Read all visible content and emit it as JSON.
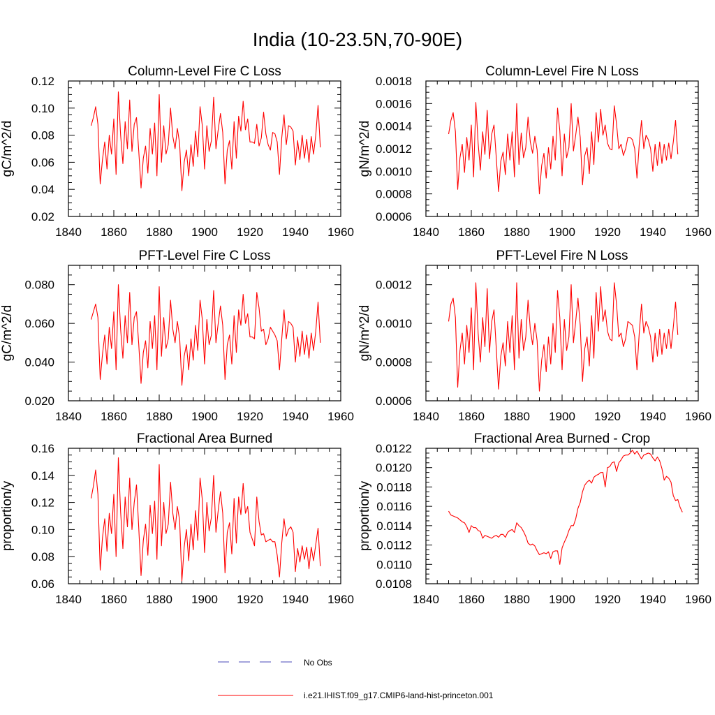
{
  "title": "India (10-23.5N,70-90E)",
  "colors": {
    "model": "#ff0000",
    "obs": "#4a4ab8"
  },
  "legend": [
    {
      "label": "No Obs",
      "color": "#4a4ab8",
      "dash": true
    },
    {
      "label": "i.e21.IHIST.f09_g17.CMIP6-land-hist-princeton.001",
      "color": "#ff0000",
      "dash": false
    }
  ],
  "chart_data": [
    {
      "type": "line",
      "title": "Column-Level Fire C Loss",
      "ylabel": "gC/m^2/d",
      "xlim": [
        1840,
        1960
      ],
      "xticks": [
        "1840",
        "1860",
        "1880",
        "1900",
        "1920",
        "1940",
        "1960"
      ],
      "ylim": [
        0.02,
        0.12
      ],
      "yticks": [
        "0.02",
        "0.04",
        "0.06",
        "0.08",
        "0.10",
        "0.12"
      ],
      "x_start": 1850,
      "series": [
        {
          "values": [
            0.087,
            0.093,
            0.101,
            0.088,
            0.044,
            0.062,
            0.075,
            0.055,
            0.08,
            0.066,
            0.092,
            0.051,
            0.112,
            0.08,
            0.059,
            0.09,
            0.07,
            0.106,
            0.068,
            0.088,
            0.093,
            0.068,
            0.041,
            0.063,
            0.072,
            0.052,
            0.085,
            0.066,
            0.089,
            0.05,
            0.11,
            0.06,
            0.087,
            0.066,
            0.073,
            0.1,
            0.079,
            0.07,
            0.085,
            0.074,
            0.039,
            0.06,
            0.069,
            0.05,
            0.073,
            0.057,
            0.083,
            0.064,
            0.101,
            0.087,
            0.055,
            0.087,
            0.068,
            0.076,
            0.108,
            0.07,
            0.084,
            0.096,
            0.082,
            0.044,
            0.069,
            0.076,
            0.055,
            0.09,
            0.063,
            0.094,
            0.083,
            0.105,
            0.084,
            0.092,
            0.075,
            0.075,
            0.074,
            0.088,
            0.072,
            0.078,
            0.097,
            0.081,
            0.073,
            0.069,
            0.082,
            0.081,
            0.075,
            0.051,
            0.078,
            0.095,
            0.073,
            0.087,
            0.086,
            0.083,
            0.058,
            0.076,
            0.062,
            0.08,
            0.063,
            0.077,
            0.06,
            0.079,
            0.066,
            0.08,
            0.102,
            0.071
          ]
        }
      ]
    },
    {
      "type": "line",
      "title": "Column-Level Fire N Loss",
      "ylabel": "gN/m^2/d",
      "xlim": [
        1840,
        1960
      ],
      "xticks": [
        "1840",
        "1860",
        "1880",
        "1900",
        "1920",
        "1940",
        "1960"
      ],
      "ylim": [
        0.0006,
        0.0018
      ],
      "yticks": [
        "0.0006",
        "0.0008",
        "0.0010",
        "0.0012",
        "0.0014",
        "0.0016",
        "0.0018"
      ],
      "x_start": 1850,
      "series": [
        {
          "values": [
            0.00133,
            0.00145,
            0.00152,
            0.00135,
            0.00084,
            0.00112,
            0.00124,
            0.00099,
            0.0013,
            0.0011,
            0.00141,
            0.00095,
            0.00161,
            0.00125,
            0.00101,
            0.00135,
            0.00115,
            0.00154,
            0.00111,
            0.00133,
            0.00141,
            0.00112,
            0.00082,
            0.00109,
            0.00117,
            0.00097,
            0.00133,
            0.0011,
            0.00135,
            0.00095,
            0.0016,
            0.00106,
            0.00134,
            0.00112,
            0.00121,
            0.00148,
            0.00126,
            0.00116,
            0.00131,
            0.00119,
            0.0008,
            0.00105,
            0.00116,
            0.00094,
            0.00121,
            0.00102,
            0.00131,
            0.0011,
            0.00156,
            0.00136,
            0.00096,
            0.00133,
            0.00112,
            0.00121,
            0.0016,
            0.00118,
            0.00132,
            0.00148,
            0.0013,
            0.00088,
            0.00114,
            0.00121,
            0.00098,
            0.00135,
            0.00106,
            0.00152,
            0.00126,
            0.00155,
            0.00132,
            0.00141,
            0.00125,
            0.0012,
            0.00119,
            0.00158,
            0.00142,
            0.0012,
            0.00124,
            0.00114,
            0.0012,
            0.0013,
            0.0013,
            0.00128,
            0.0012,
            0.00094,
            0.00124,
            0.00145,
            0.0012,
            0.00132,
            0.00128,
            0.0012,
            0.001,
            0.00124,
            0.00105,
            0.00126,
            0.00107,
            0.00124,
            0.0011,
            0.00125,
            0.00111,
            0.00126,
            0.00145,
            0.00115
          ]
        }
      ]
    },
    {
      "type": "line",
      "title": "PFT-Level Fire C Loss",
      "ylabel": "gC/m^2/d",
      "xlim": [
        1840,
        1960
      ],
      "xticks": [
        "1840",
        "1860",
        "1880",
        "1900",
        "1920",
        "1940",
        "1960"
      ],
      "ylim": [
        0.02,
        0.09
      ],
      "yticks": [
        "0.020",
        "0.040",
        "0.060",
        "0.080"
      ],
      "x_start": 1850,
      "series": [
        {
          "values": [
            0.062,
            0.066,
            0.07,
            0.063,
            0.031,
            0.044,
            0.054,
            0.039,
            0.058,
            0.047,
            0.066,
            0.036,
            0.08,
            0.057,
            0.042,
            0.064,
            0.05,
            0.076,
            0.049,
            0.063,
            0.066,
            0.049,
            0.029,
            0.045,
            0.051,
            0.037,
            0.061,
            0.047,
            0.064,
            0.036,
            0.079,
            0.043,
            0.063,
            0.047,
            0.052,
            0.072,
            0.057,
            0.05,
            0.061,
            0.053,
            0.028,
            0.043,
            0.049,
            0.036,
            0.052,
            0.041,
            0.059,
            0.046,
            0.072,
            0.062,
            0.039,
            0.062,
            0.049,
            0.054,
            0.077,
            0.05,
            0.06,
            0.069,
            0.059,
            0.031,
            0.049,
            0.054,
            0.039,
            0.064,
            0.045,
            0.067,
            0.059,
            0.075,
            0.06,
            0.065,
            0.053,
            0.053,
            0.052,
            0.076,
            0.068,
            0.056,
            0.057,
            0.049,
            0.052,
            0.058,
            0.056,
            0.054,
            0.051,
            0.036,
            0.052,
            0.067,
            0.052,
            0.061,
            0.06,
            0.058,
            0.04,
            0.053,
            0.043,
            0.056,
            0.044,
            0.054,
            0.042,
            0.055,
            0.046,
            0.056,
            0.071,
            0.05
          ]
        }
      ]
    },
    {
      "type": "line",
      "title": "PFT-Level Fire N Loss",
      "ylabel": "gN/m^2/d",
      "xlim": [
        1840,
        1960
      ],
      "xticks": [
        "1840",
        "1860",
        "1880",
        "1900",
        "1920",
        "1940",
        "1960"
      ],
      "ylim": [
        0.0006,
        0.0013
      ],
      "yticks": [
        "0.0006",
        "0.0008",
        "0.0010",
        "0.0012"
      ],
      "x_start": 1850,
      "series": [
        {
          "values": [
            0.00101,
            0.0011,
            0.00113,
            0.00103,
            0.00067,
            0.00086,
            0.00095,
            0.00079,
            0.00099,
            0.00085,
            0.00108,
            0.00076,
            0.00121,
            0.00095,
            0.0008,
            0.00103,
            0.00088,
            0.00118,
            0.00085,
            0.00101,
            0.00107,
            0.00087,
            0.00066,
            0.00083,
            0.0009,
            0.00078,
            0.00101,
            0.00085,
            0.00104,
            0.00076,
            0.00121,
            0.00082,
            0.00102,
            0.00086,
            0.00093,
            0.00112,
            0.00097,
            0.00089,
            0.001,
            0.00091,
            0.00065,
            0.00081,
            0.00089,
            0.00075,
            0.00093,
            0.00079,
            0.001,
            0.00085,
            0.00117,
            0.00103,
            0.00076,
            0.00102,
            0.00086,
            0.00093,
            0.0012,
            0.0009,
            0.00101,
            0.00113,
            0.00099,
            0.0007,
            0.00087,
            0.00093,
            0.00078,
            0.00104,
            0.00082,
            0.00116,
            0.00096,
            0.00119,
            0.00101,
            0.00107,
            0.00096,
            0.00092,
            0.00091,
            0.00121,
            0.0011,
            0.00093,
            0.00095,
            0.00088,
            0.00092,
            0.00101,
            0.001,
            0.00099,
            0.00093,
            0.00076,
            0.00095,
            0.0011,
            0.00095,
            0.00101,
            0.00098,
            0.00093,
            0.0008,
            0.00095,
            0.00083,
            0.00097,
            0.00084,
            0.00095,
            0.00087,
            0.00097,
            0.00087,
            0.00098,
            0.00111,
            0.00094
          ]
        }
      ]
    },
    {
      "type": "line",
      "title": "Fractional Area Burned",
      "ylabel": "proportion/y",
      "xlim": [
        1840,
        1960
      ],
      "xticks": [
        "1840",
        "1860",
        "1880",
        "1900",
        "1920",
        "1940",
        "1960"
      ],
      "ylim": [
        0.06,
        0.16
      ],
      "yticks": [
        "0.06",
        "0.08",
        "0.10",
        "0.12",
        "0.14",
        "0.16"
      ],
      "x_start": 1850,
      "series": [
        {
          "values": [
            0.123,
            0.132,
            0.144,
            0.126,
            0.07,
            0.094,
            0.108,
            0.084,
            0.112,
            0.097,
            0.126,
            0.08,
            0.153,
            0.113,
            0.086,
            0.124,
            0.102,
            0.138,
            0.1,
            0.12,
            0.133,
            0.101,
            0.066,
            0.092,
            0.104,
            0.081,
            0.118,
            0.097,
            0.121,
            0.078,
            0.148,
            0.088,
            0.12,
            0.097,
            0.104,
            0.135,
            0.112,
            0.1,
            0.117,
            0.107,
            0.062,
            0.087,
            0.1,
            0.077,
            0.104,
            0.085,
            0.114,
            0.092,
            0.138,
            0.122,
            0.083,
            0.12,
            0.099,
            0.109,
            0.14,
            0.098,
            0.114,
            0.128,
            0.112,
            0.068,
            0.098,
            0.105,
            0.082,
            0.123,
            0.09,
            0.124,
            0.111,
            0.134,
            0.112,
            0.117,
            0.098,
            0.093,
            0.088,
            0.124,
            0.106,
            0.096,
            0.097,
            0.091,
            0.092,
            0.093,
            0.091,
            0.091,
            0.081,
            0.065,
            0.09,
            0.108,
            0.095,
            0.1,
            0.102,
            0.098,
            0.069,
            0.086,
            0.076,
            0.088,
            0.078,
            0.087,
            0.071,
            0.087,
            0.077,
            0.089,
            0.101,
            0.073
          ]
        }
      ]
    },
    {
      "type": "line",
      "title": "Fractional Area Burned - Crop",
      "ylabel": "proportion/y",
      "xlim": [
        1840,
        1960
      ],
      "xticks": [
        "1840",
        "1860",
        "1880",
        "1900",
        "1920",
        "1940",
        "1960"
      ],
      "ylim": [
        0.0108,
        0.0122
      ],
      "yticks": [
        "0.0108",
        "0.0110",
        "0.0112",
        "0.0114",
        "0.0116",
        "0.0118",
        "0.0120",
        "0.0122"
      ],
      "x_start": 1850,
      "series": [
        {
          "values": [
            0.01155,
            0.01151,
            0.0115,
            0.01149,
            0.01148,
            0.01146,
            0.01144,
            0.01143,
            0.01139,
            0.01133,
            0.0114,
            0.01138,
            0.01138,
            0.01135,
            0.01134,
            0.01127,
            0.0113,
            0.01129,
            0.01128,
            0.01127,
            0.01129,
            0.0113,
            0.01128,
            0.01131,
            0.01131,
            0.01128,
            0.01133,
            0.01135,
            0.01136,
            0.01133,
            0.01143,
            0.0114,
            0.01138,
            0.01134,
            0.01129,
            0.01122,
            0.0112,
            0.01121,
            0.01119,
            0.01114,
            0.0111,
            0.01111,
            0.01112,
            0.01111,
            0.01113,
            0.01106,
            0.01113,
            0.01114,
            0.01114,
            0.011,
            0.01117,
            0.01123,
            0.01128,
            0.01135,
            0.0114,
            0.0114,
            0.01147,
            0.01158,
            0.01164,
            0.01175,
            0.01182,
            0.01185,
            0.01187,
            0.01184,
            0.0119,
            0.01192,
            0.01193,
            0.01195,
            0.01195,
            0.0118,
            0.012,
            0.01201,
            0.01205,
            0.01206,
            0.01196,
            0.01205,
            0.01208,
            0.01212,
            0.01213,
            0.01213,
            0.01215,
            0.01218,
            0.01214,
            0.01217,
            0.01213,
            0.01209,
            0.01213,
            0.01214,
            0.01215,
            0.01214,
            0.0121,
            0.01207,
            0.01211,
            0.01207,
            0.01199,
            0.01187,
            0.01191,
            0.01189,
            0.01185,
            0.01171,
            0.01166,
            0.01167,
            0.01159,
            0.01154
          ]
        }
      ]
    }
  ]
}
